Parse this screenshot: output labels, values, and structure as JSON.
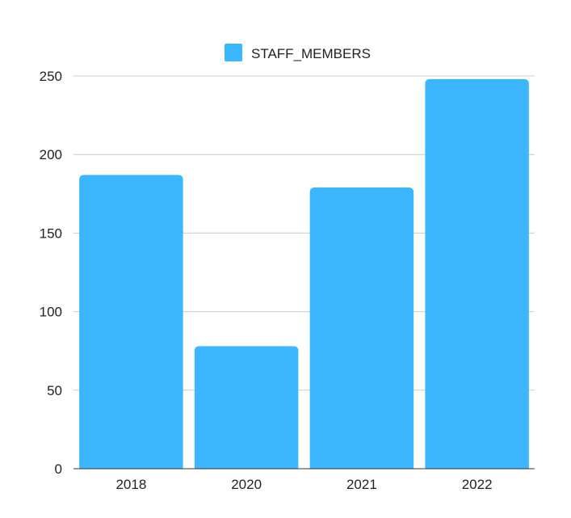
{
  "chart_data": {
    "type": "bar",
    "title": "",
    "xlabel": "",
    "ylabel": "",
    "categories": [
      "2018",
      "2020",
      "2021",
      "2022"
    ],
    "series": [
      {
        "name": "STAFF_MEMBERS",
        "values": [
          187,
          78,
          179,
          248
        ],
        "color": "#3bb6ff"
      }
    ],
    "ylim": [
      0,
      250
    ],
    "yticks": [
      0,
      50,
      100,
      150,
      200,
      250
    ],
    "ytick_labels": [
      "0",
      "50",
      "100",
      "150",
      "200",
      "250"
    ],
    "grid": true,
    "legend": {
      "position": "top",
      "label": "STAFF_MEMBERS"
    }
  }
}
